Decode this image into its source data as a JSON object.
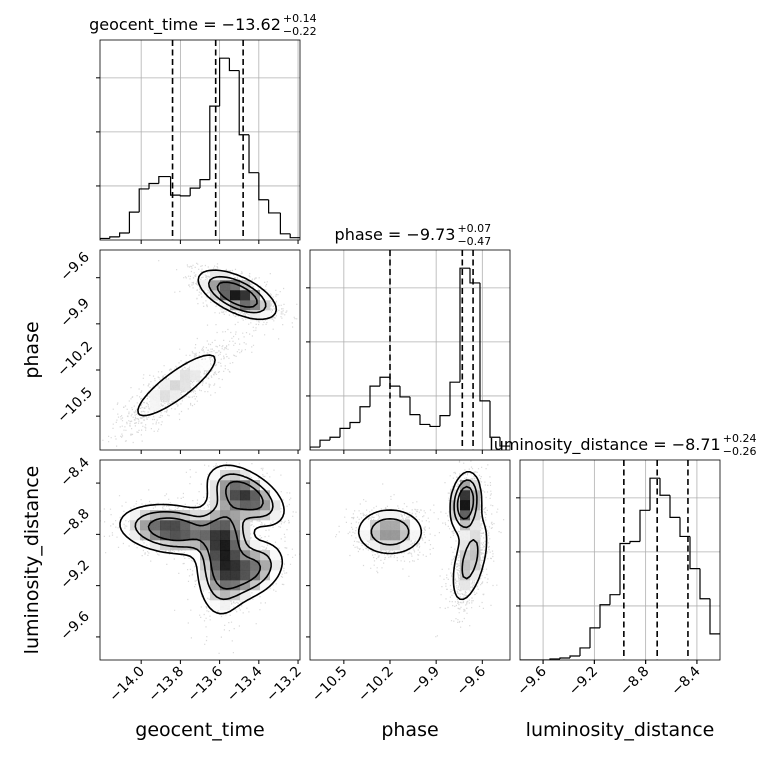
{
  "chart_data": {
    "type": "corner",
    "parameters": [
      "geocent_time",
      "phase",
      "luminosity_distance"
    ],
    "axis_labels": {
      "geocent_time": "geocent_time",
      "phase": "phase",
      "luminosity_distance": "luminosity_distance"
    },
    "ranges": {
      "geocent_time": [
        -14.21,
        -13.19
      ],
      "phase": [
        -10.72,
        -9.42
      ],
      "luminosity_distance": [
        -9.78,
        -8.22
      ]
    },
    "ticks": {
      "geocent_time": [
        -14.0,
        -13.8,
        -13.6,
        -13.4,
        -13.2
      ],
      "phase": [
        -10.5,
        -10.2,
        -9.9,
        -9.6
      ],
      "luminosity_distance": [
        -9.6,
        -9.2,
        -8.8,
        -8.4
      ]
    },
    "tick_labels": {
      "geocent_time": [
        "−14.0",
        "−13.8",
        "−13.6",
        "−13.4",
        "−13.2"
      ],
      "phase": [
        "−10.5",
        "−10.2",
        "−9.9",
        "−9.6"
      ],
      "luminosity_distance": [
        "−9.6",
        "−9.2",
        "−8.8",
        "−8.4"
      ]
    },
    "titles": [
      {
        "param": "geocent_time",
        "label": "geocent_time",
        "median": "−13.62",
        "plus": "+0.14",
        "minus": "−0.22"
      },
      {
        "param": "phase",
        "label": "phase",
        "median": "−9.73",
        "plus": "+0.07",
        "minus": "−0.47"
      },
      {
        "param": "luminosity_distance",
        "label": "luminosity_distance",
        "median": "−8.71",
        "plus": "+0.24",
        "minus": "−0.26"
      }
    ],
    "quantiles": {
      "geocent_time": [
        -13.84,
        -13.62,
        -13.48
      ],
      "phase": [
        -10.2,
        -9.73,
        -9.66
      ],
      "luminosity_distance": [
        -8.97,
        -8.71,
        -8.47
      ]
    },
    "histograms": {
      "geocent_time": {
        "bin_edges": [
          -14.21,
          -14.16,
          -14.11,
          -14.06,
          -14.01,
          -13.96,
          -13.91,
          -13.85,
          -13.8,
          -13.75,
          -13.7,
          -13.65,
          -13.6,
          -13.55,
          -13.5,
          -13.45,
          -13.4,
          -13.35,
          -13.29,
          -13.24,
          -13.19
        ],
        "counts": [
          2,
          4,
          9,
          36,
          66,
          73,
          82,
          58,
          57,
          67,
          78,
          173,
          235,
          219,
          136,
          87,
          52,
          35,
          8,
          3
        ]
      },
      "phase": {
        "bin_edges": [
          -10.72,
          -10.655,
          -10.59,
          -10.525,
          -10.46,
          -10.395,
          -10.33,
          -10.265,
          -10.2,
          -10.135,
          -10.07,
          -10.005,
          -9.94,
          -9.875,
          -9.81,
          -9.745,
          -9.68,
          -9.615,
          -9.55,
          -9.485,
          -9.42
        ],
        "counts": [
          3,
          10,
          13,
          22,
          28,
          44,
          65,
          74,
          65,
          54,
          36,
          26,
          24,
          35,
          69,
          185,
          170,
          50,
          13,
          4
        ]
      },
      "luminosity_distance": {
        "bin_edges": [
          -9.78,
          -9.702,
          -9.624,
          -9.546,
          -9.468,
          -9.39,
          -9.312,
          -9.234,
          -9.156,
          -9.078,
          -9.0,
          -8.922,
          -8.844,
          -8.766,
          -8.688,
          -8.61,
          -8.532,
          -8.454,
          -8.376,
          -8.298,
          -8.22
        ],
        "counts": [
          0,
          0,
          0,
          1,
          2,
          4,
          12,
          32,
          55,
          65,
          116,
          118,
          149,
          181,
          164,
          142,
          123,
          91,
          61,
          26
        ]
      }
    },
    "joint_modes": {
      "geocent_time vs phase": [
        {
          "x": -13.51,
          "y": -9.71,
          "sx": 0.1,
          "sy": 0.08,
          "rho": -0.6,
          "weight": 0.62
        },
        {
          "x": -13.82,
          "y": -10.3,
          "sx": 0.15,
          "sy": 0.15,
          "rho": 0.85,
          "weight": 0.38
        }
      ],
      "geocent_time vs luminosity_distance": [
        {
          "x": -13.84,
          "y": -8.76,
          "sx": 0.14,
          "sy": 0.1,
          "rho": -0.2,
          "weight": 0.28
        },
        {
          "x": -13.58,
          "y": -8.93,
          "sx": 0.07,
          "sy": 0.25,
          "rho": 0.1,
          "weight": 0.36
        },
        {
          "x": -13.46,
          "y": -8.5,
          "sx": 0.1,
          "sy": 0.12,
          "rho": -0.5,
          "weight": 0.2
        },
        {
          "x": -13.44,
          "y": -9.08,
          "sx": 0.09,
          "sy": 0.12,
          "rho": 0.3,
          "weight": 0.16
        }
      ],
      "phase vs luminosity_distance": [
        {
          "x": -10.2,
          "y": -8.78,
          "sx": 0.12,
          "sy": 0.1,
          "rho": 0.0,
          "weight": 0.38
        },
        {
          "x": -9.71,
          "y": -8.55,
          "sx": 0.05,
          "sy": 0.12,
          "rho": 0.2,
          "weight": 0.32
        },
        {
          "x": -9.68,
          "y": -9.0,
          "sx": 0.07,
          "sy": 0.2,
          "rho": 0.5,
          "weight": 0.3
        }
      ]
    },
    "grid": true,
    "colors": {
      "line": "#000000",
      "grid": "#b0b0b0",
      "scatter": "#777777"
    }
  }
}
